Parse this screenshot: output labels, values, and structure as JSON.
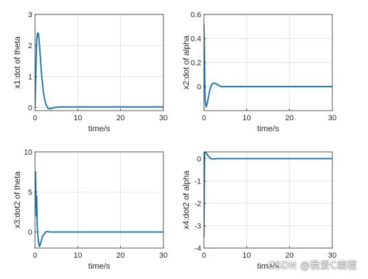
{
  "colors": {
    "line": "#1f77b4",
    "axis": "#262626",
    "grid": "#d9d9d9",
    "background": "#ffffff"
  },
  "watermark": "CSDN @我爱C编程",
  "chart_data": [
    {
      "type": "line",
      "xlabel": "time/s",
      "ylabel": "x1:dot of theta",
      "xlim": [
        0,
        30
      ],
      "ylim": [
        -0.1,
        3
      ],
      "xticks": [
        0,
        10,
        20,
        30
      ],
      "yticks": [
        0,
        1,
        2,
        3
      ],
      "grid": true,
      "series": [
        {
          "x": [
            0,
            0.2,
            0.4,
            0.6,
            0.8,
            1.0,
            1.2,
            1.5,
            2.0,
            2.5,
            3.0,
            3.5,
            4.0,
            4.5,
            5,
            6,
            8,
            10,
            15,
            20,
            25,
            30
          ],
          "y": [
            0,
            1.2,
            2.2,
            2.4,
            2.38,
            2.1,
            1.7,
            1.1,
            0.45,
            0.12,
            -0.02,
            -0.04,
            -0.02,
            0.0,
            0.01,
            0.02,
            0.02,
            0.02,
            0.02,
            0.02,
            0.02,
            0.02
          ]
        }
      ]
    },
    {
      "type": "line",
      "xlabel": "time/s",
      "ylabel": "x2:dot of alpha",
      "xlim": [
        0,
        30
      ],
      "ylim": [
        -0.2,
        0.6
      ],
      "xticks": [
        0,
        10,
        20,
        30
      ],
      "yticks": [
        0,
        0.2,
        0.4,
        0.6
      ],
      "grid": true,
      "series": [
        {
          "x": [
            0,
            0.1,
            0.2,
            0.3,
            0.5,
            0.7,
            1.0,
            1.3,
            1.6,
            2.0,
            2.4,
            3.0,
            3.5,
            4.0,
            5,
            6,
            8,
            10,
            15,
            20,
            25,
            30
          ],
          "y": [
            0.52,
            0.3,
            0.05,
            -0.12,
            -0.17,
            -0.15,
            -0.1,
            -0.04,
            0.0,
            0.025,
            0.03,
            0.02,
            0.01,
            0.0,
            0.0,
            0.0,
            0.0,
            0.0,
            0.0,
            0.0,
            0.0,
            0.0
          ]
        }
      ]
    },
    {
      "type": "line",
      "xlabel": "time/s",
      "ylabel": "x3:dot2 of theta",
      "xlim": [
        0,
        30
      ],
      "ylim": [
        -2,
        10
      ],
      "xticks": [
        0,
        10,
        20,
        30
      ],
      "yticks": [
        0,
        5,
        10
      ],
      "grid": true,
      "series": [
        {
          "x": [
            0,
            0.1,
            0.2,
            0.3,
            0.4,
            0.5,
            0.6,
            0.8,
            1.0,
            1.2,
            1.5,
            1.8,
            2.2,
            2.6,
            3.0,
            3.5,
            4.0,
            5,
            6,
            8,
            10,
            15,
            20,
            25,
            30
          ],
          "y": [
            3.0,
            7.5,
            5.0,
            2.0,
            4.5,
            1.0,
            0.0,
            -1.2,
            -1.8,
            -1.6,
            -1.0,
            -0.5,
            -0.2,
            0.05,
            0.05,
            0.0,
            0.0,
            0.0,
            0.0,
            0.0,
            0.0,
            0.0,
            0.0,
            0.0,
            0.0
          ]
        }
      ]
    },
    {
      "type": "line",
      "xlabel": "time/s",
      "ylabel": "x4:dot2 of alpha",
      "xlim": [
        0,
        30
      ],
      "ylim": [
        -4,
        0.3
      ],
      "xticks": [
        0,
        10,
        20,
        30
      ],
      "yticks": [
        -4,
        -3,
        -2,
        -1,
        0
      ],
      "grid": true,
      "series": [
        {
          "x": [
            0,
            0.05,
            0.1,
            0.15,
            0.2,
            0.3,
            0.4,
            0.5,
            0.7,
            1.0,
            1.3,
            1.6,
            2.0,
            2.5,
            3.0,
            4.0,
            5,
            6,
            8,
            10,
            15,
            20,
            25,
            30
          ],
          "y": [
            -3.5,
            -2.0,
            -0.6,
            0.2,
            0.3,
            0.3,
            0.28,
            0.25,
            0.2,
            0.12,
            0.05,
            0.0,
            -0.02,
            -0.01,
            0.0,
            0.0,
            0.0,
            0.0,
            0.0,
            0.0,
            0.0,
            0.0,
            0.0,
            0.0
          ]
        }
      ]
    }
  ]
}
